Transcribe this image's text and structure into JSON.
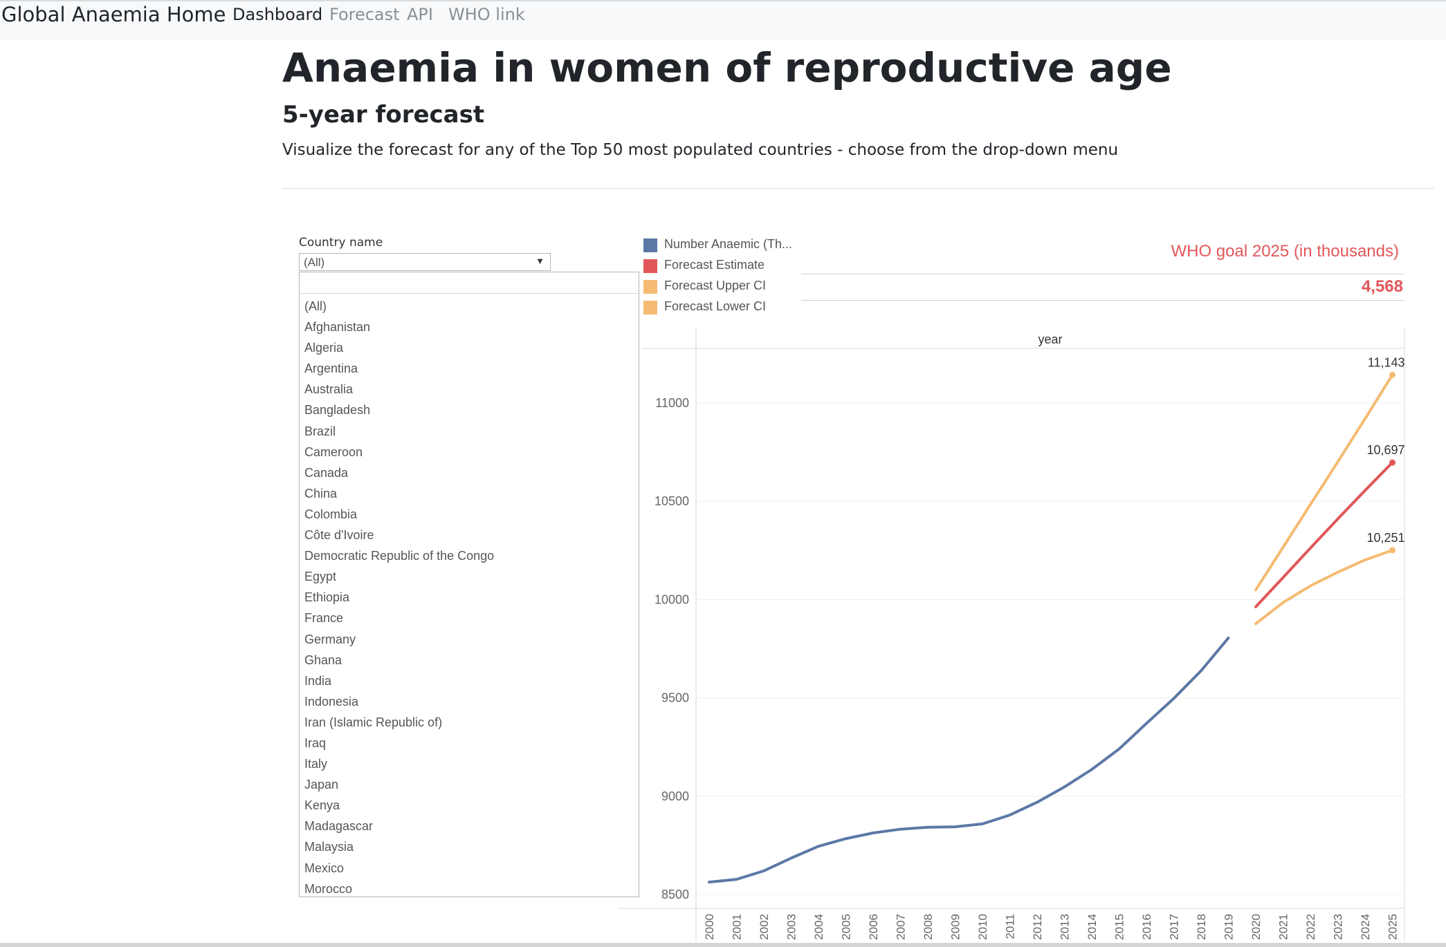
{
  "navbar": {
    "brand": "Global Anaemia Home",
    "links": [
      {
        "label": "Dashboard",
        "active": true
      },
      {
        "label": "Forecast",
        "active": false
      },
      {
        "label": "API",
        "active": false
      },
      {
        "label": "WHO link",
        "active": false
      }
    ]
  },
  "header": {
    "title": "Anaemia in women of reproductive age",
    "subtitle": "5-year forecast",
    "description": "Visualize the forecast for any of the Top 50 most populated countries - choose from the drop-down menu"
  },
  "filter": {
    "label": "Country name",
    "selected": "(All)",
    "search_value": "",
    "options": [
      "(All)",
      "Afghanistan",
      "Algeria",
      "Argentina",
      "Australia",
      "Bangladesh",
      "Brazil",
      "Cameroon",
      "Canada",
      "China",
      "Colombia",
      "Côte d'Ivoire",
      "Democratic Republic of the Congo",
      "Egypt",
      "Ethiopia",
      "France",
      "Germany",
      "Ghana",
      "India",
      "Indonesia",
      "Iran (Islamic Republic of)",
      "Iraq",
      "Italy",
      "Japan",
      "Kenya",
      "Madagascar",
      "Malaysia",
      "Mexico",
      "Morocco"
    ]
  },
  "legend": [
    {
      "label": "Number Anaemic (Th...",
      "color": "#4e79a7"
    },
    {
      "label": "Forecast Estimate",
      "color": "#e15759"
    },
    {
      "label": "Forecast Upper CI",
      "color": "#f1ce63"
    },
    {
      "label": "Forecast Lower CI",
      "color": "#f1ce63"
    }
  ],
  "who_goal": {
    "title": "WHO goal 2025 (in thousands)",
    "value": "4,568",
    "color": "#e15759"
  },
  "colors": {
    "actual": "#5b78a6",
    "forecast": "#e15759",
    "ci": "#f5bb72"
  },
  "chart_data": {
    "type": "line",
    "x_header": "year",
    "x": [
      "2000",
      "2001",
      "2002",
      "2003",
      "2004",
      "2005",
      "2006",
      "2007",
      "2008",
      "2009",
      "2010",
      "2011",
      "2012",
      "2013",
      "2014",
      "2015",
      "2016",
      "2017",
      "2018",
      "2019",
      "2020",
      "2021",
      "2022",
      "2023",
      "2024",
      "2025"
    ],
    "ylim": [
      8500,
      11200
    ],
    "yticks": [
      8500,
      9000,
      9500,
      10000,
      10500,
      11000
    ],
    "series": [
      {
        "name": "Number Anaemic (Th...",
        "color": "#5b78a6",
        "points": [
          [
            "2000",
            8563
          ],
          [
            "2001",
            8577
          ],
          [
            "2002",
            8620
          ],
          [
            "2003",
            8685
          ],
          [
            "2004",
            8745
          ],
          [
            "2005",
            8784
          ],
          [
            "2006",
            8813
          ],
          [
            "2007",
            8832
          ],
          [
            "2008",
            8842
          ],
          [
            "2009",
            8844
          ],
          [
            "2010",
            8859
          ],
          [
            "2011",
            8904
          ],
          [
            "2012",
            8969
          ],
          [
            "2013",
            9047
          ],
          [
            "2014",
            9136
          ],
          [
            "2015",
            9240
          ],
          [
            "2016",
            9370
          ],
          [
            "2017",
            9497
          ],
          [
            "2018",
            9638
          ],
          [
            "2019",
            9805
          ]
        ]
      },
      {
        "name": "Forecast Estimate",
        "color": "#e15759",
        "points": [
          [
            "2020",
            9963
          ],
          [
            "2021",
            10112
          ],
          [
            "2022",
            10262
          ],
          [
            "2023",
            10410
          ],
          [
            "2024",
            10555
          ],
          [
            "2025",
            10697
          ]
        ],
        "end_label": "10,697"
      },
      {
        "name": "Forecast Upper CI",
        "color": "#f5bb72",
        "points": [
          [
            "2020",
            10049
          ],
          [
            "2021",
            10266
          ],
          [
            "2022",
            10484
          ],
          [
            "2023",
            10700
          ],
          [
            "2024",
            10920
          ],
          [
            "2025",
            11143
          ]
        ],
        "end_label": "11,143"
      },
      {
        "name": "Forecast Lower CI",
        "color": "#f5bb72",
        "points": [
          [
            "2020",
            9877
          ],
          [
            "2021",
            9985
          ],
          [
            "2022",
            10070
          ],
          [
            "2023",
            10139
          ],
          [
            "2024",
            10202
          ],
          [
            "2025",
            10251
          ]
        ],
        "end_label": "10,251"
      }
    ]
  }
}
